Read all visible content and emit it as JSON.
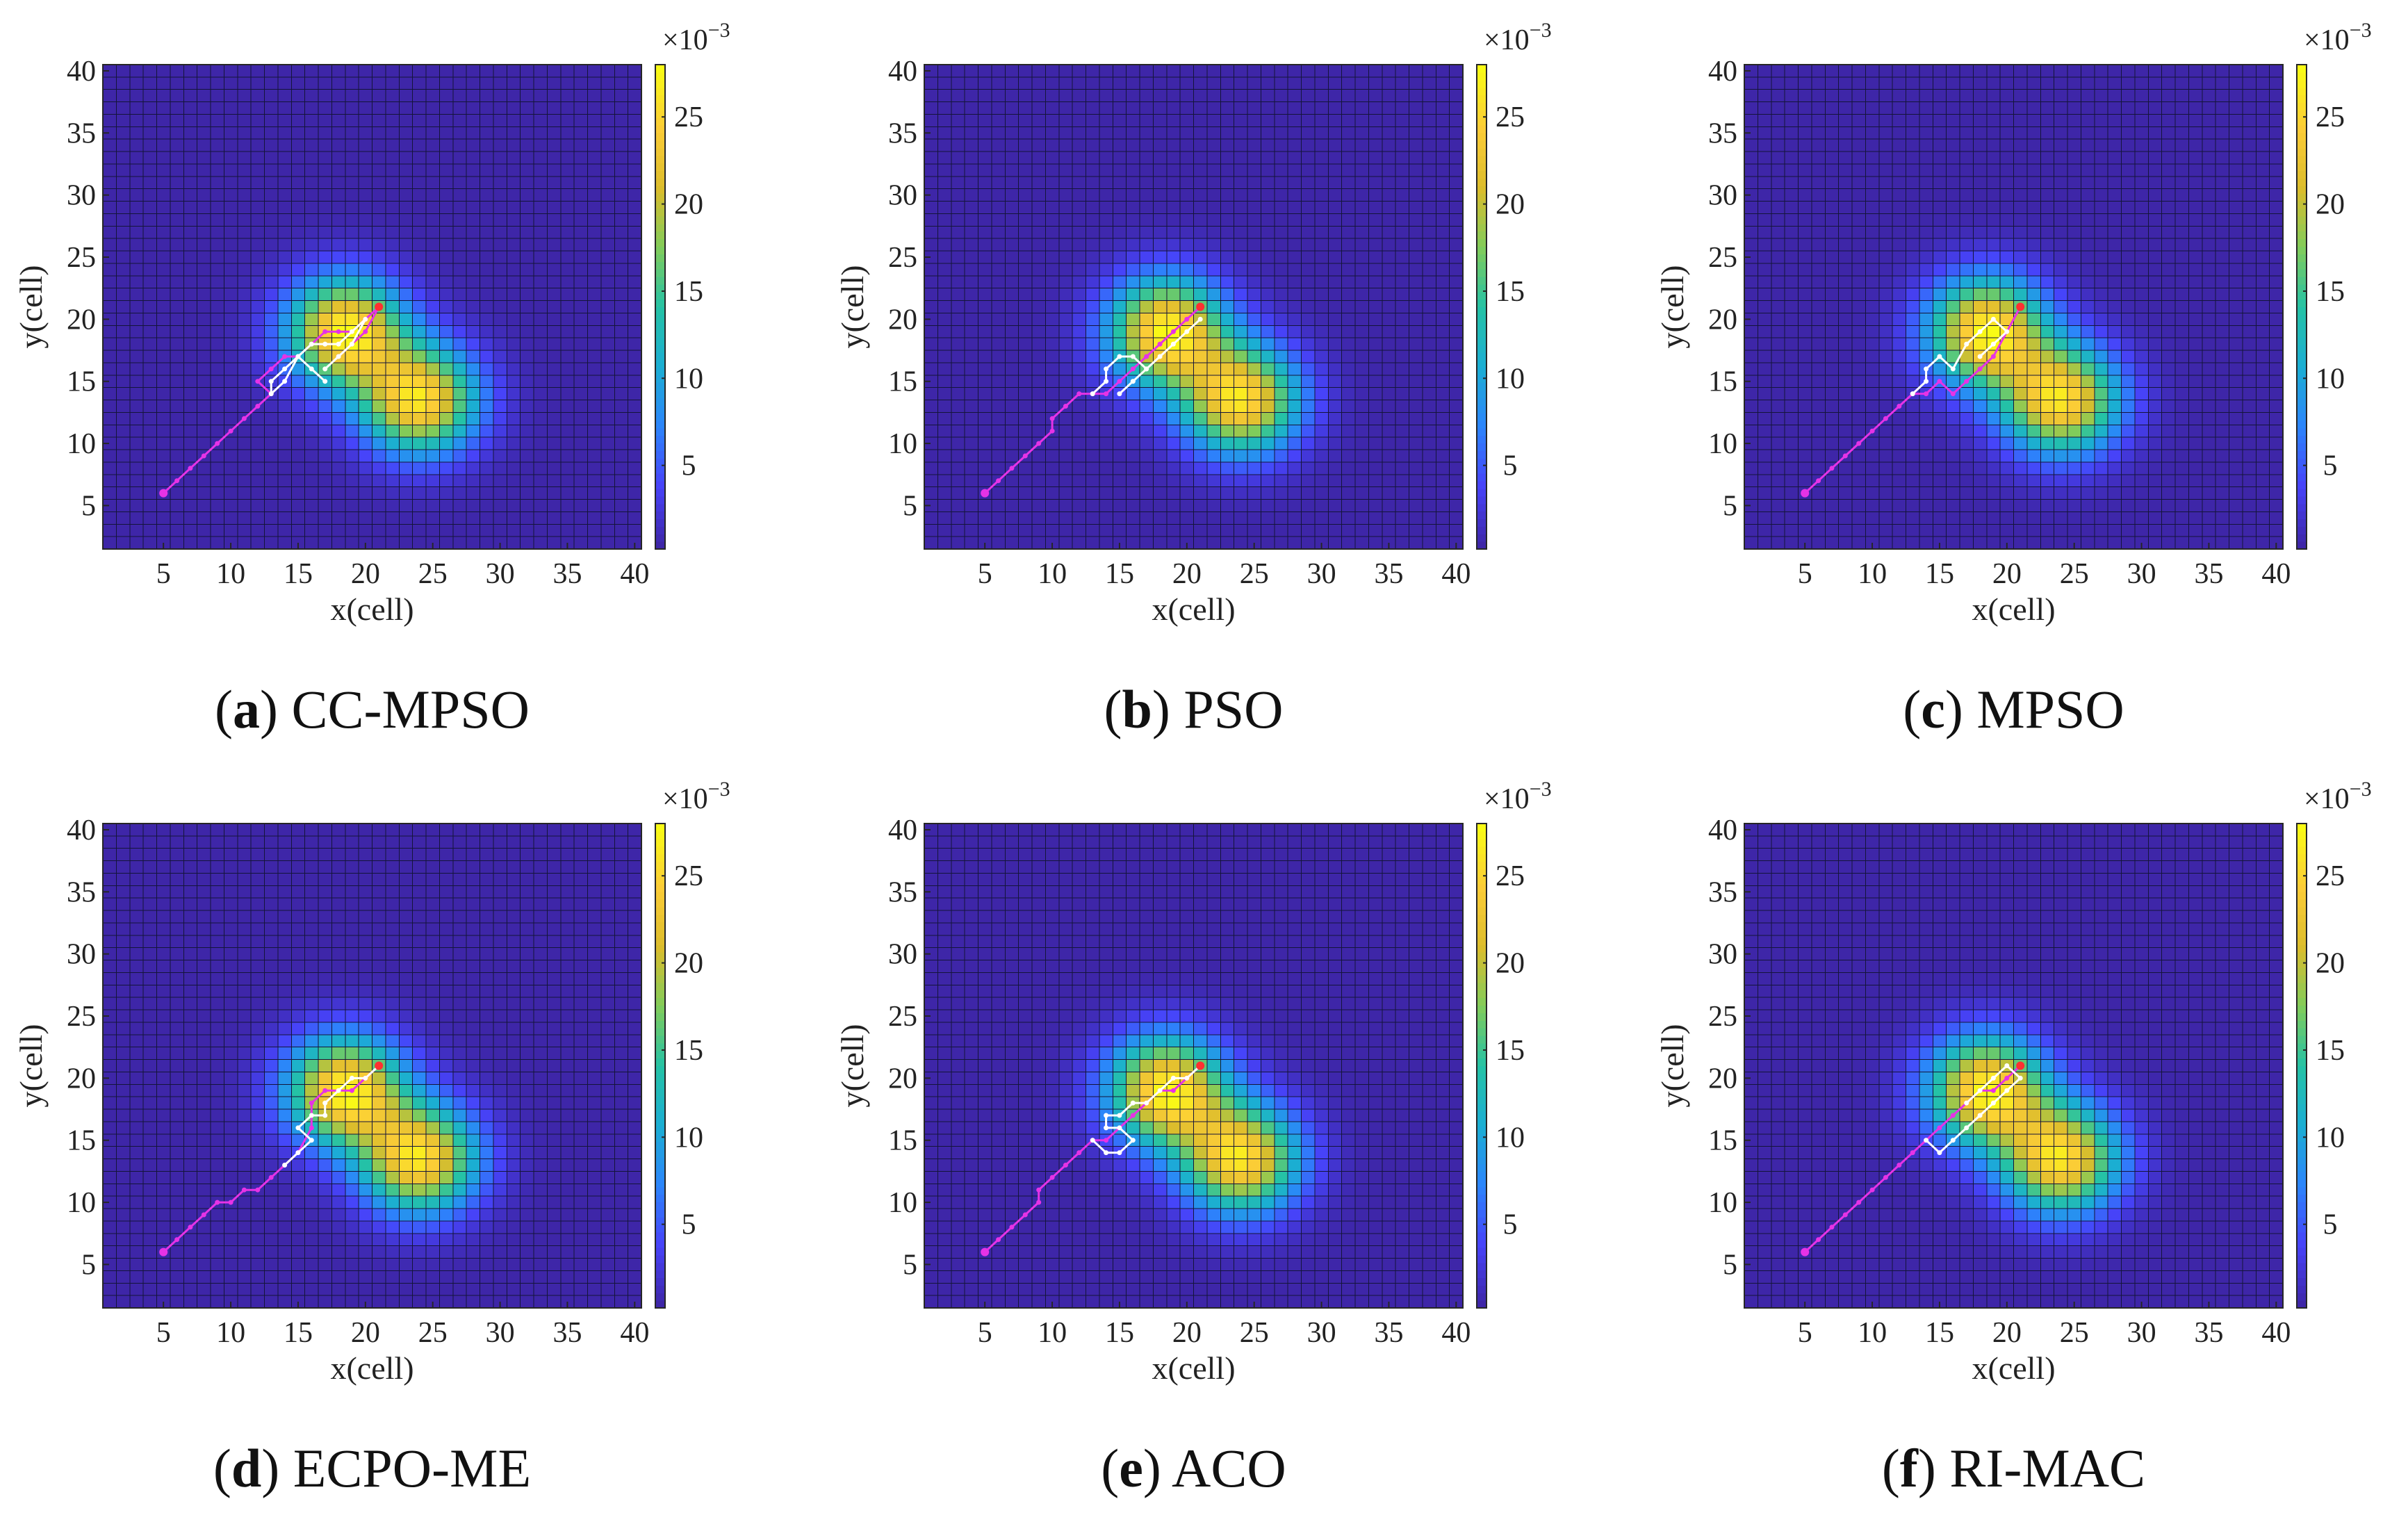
{
  "colors": {
    "background": "#ffffff",
    "grid_line": "#14143a",
    "path_primary": "#ffffff",
    "path_secondary": "#e633e6",
    "start_marker": "#e633e6",
    "end_marker": "#ff3030",
    "axis": "#262626",
    "colormap": [
      "#3e26a8",
      "#4743f9",
      "#2c85fb",
      "#1baed3",
      "#25c2a5",
      "#81cc5a",
      "#dcbd2c",
      "#fbcc37",
      "#f9fb15"
    ]
  },
  "colorbar": {
    "multiplier": "×10",
    "exponent": "−3",
    "ticks": [
      5,
      10,
      15,
      20,
      25
    ],
    "tick_labels": [
      "5",
      "10",
      "15",
      "20",
      "25"
    ],
    "range": [
      0.2,
      28
    ]
  },
  "chart_data": [
    {
      "type": "heatmap",
      "caption_letter": "a",
      "caption_name": "CC-MPSO",
      "xlabel": "x(cell)",
      "ylabel": "y(cell)",
      "xlim": [
        0.5,
        40.5
      ],
      "ylim": [
        1.5,
        40.5
      ],
      "x_ticks": [
        "5",
        "10",
        "15",
        "20",
        "25",
        "30",
        "35",
        "40"
      ],
      "y_ticks": [
        "5",
        "10",
        "15",
        "20",
        "25",
        "30",
        "35",
        "40"
      ],
      "grid": true,
      "peaks": [
        {
          "x": 18.5,
          "y": 19,
          "value": 27.5,
          "sigma": 3.0
        },
        {
          "x": 24,
          "y": 13.5,
          "value": 26.0,
          "sigma": 3.0
        }
      ],
      "path_primary": [
        [
          17,
          15
        ],
        [
          16,
          16
        ],
        [
          15,
          17
        ],
        [
          14,
          15
        ],
        [
          13,
          14
        ],
        [
          13,
          15
        ],
        [
          14,
          16
        ],
        [
          15,
          17
        ],
        [
          16,
          18
        ],
        [
          17,
          18
        ],
        [
          18,
          18
        ],
        [
          19,
          19
        ],
        [
          20,
          20
        ],
        [
          19,
          18
        ],
        [
          18,
          17
        ],
        [
          17,
          16
        ]
      ],
      "path_secondary": [
        [
          5,
          6
        ],
        [
          6,
          7
        ],
        [
          7,
          8
        ],
        [
          8,
          9
        ],
        [
          9,
          10
        ],
        [
          10,
          11
        ],
        [
          11,
          12
        ],
        [
          12,
          13
        ],
        [
          13,
          14
        ],
        [
          12,
          15
        ],
        [
          13,
          16
        ],
        [
          14,
          17
        ],
        [
          15,
          17
        ],
        [
          16,
          18
        ],
        [
          17,
          19
        ],
        [
          18,
          19
        ],
        [
          19,
          19
        ],
        [
          20,
          20
        ],
        [
          21,
          21
        ],
        [
          20,
          19
        ],
        [
          19,
          18
        ],
        [
          18,
          17
        ]
      ],
      "start": [
        5,
        6
      ],
      "end": [
        21,
        21
      ]
    },
    {
      "type": "heatmap",
      "caption_letter": "b",
      "caption_name": "PSO",
      "xlabel": "x(cell)",
      "ylabel": "y(cell)",
      "xlim": [
        0.5,
        40.5
      ],
      "ylim": [
        1.5,
        40.5
      ],
      "x_ticks": [
        "5",
        "10",
        "15",
        "20",
        "25",
        "30",
        "35",
        "40"
      ],
      "y_ticks": [
        "5",
        "10",
        "15",
        "20",
        "25",
        "30",
        "35",
        "40"
      ],
      "grid": true,
      "peaks": [
        {
          "x": 18.5,
          "y": 19,
          "value": 27.5,
          "sigma": 3.0
        },
        {
          "x": 24,
          "y": 13.5,
          "value": 26.0,
          "sigma": 3.0
        }
      ],
      "path_primary": [
        [
          13,
          14
        ],
        [
          14,
          15
        ],
        [
          14,
          16
        ],
        [
          15,
          17
        ],
        [
          16,
          17
        ],
        [
          17,
          16
        ],
        [
          16,
          15
        ],
        [
          15,
          14
        ],
        [
          16,
          15
        ],
        [
          17,
          16
        ],
        [
          18,
          17
        ],
        [
          19,
          18
        ],
        [
          20,
          19
        ],
        [
          21,
          20
        ]
      ],
      "path_secondary": [
        [
          5,
          6
        ],
        [
          6,
          7
        ],
        [
          7,
          8
        ],
        [
          8,
          9
        ],
        [
          9,
          10
        ],
        [
          10,
          11
        ],
        [
          10,
          12
        ],
        [
          11,
          13
        ],
        [
          12,
          14
        ],
        [
          13,
          14
        ],
        [
          14,
          14
        ],
        [
          15,
          15
        ],
        [
          16,
          16
        ],
        [
          17,
          17
        ],
        [
          18,
          18
        ],
        [
          19,
          19
        ],
        [
          20,
          20
        ],
        [
          21,
          21
        ]
      ],
      "start": [
        5,
        6
      ],
      "end": [
        21,
        21
      ]
    },
    {
      "type": "heatmap",
      "caption_letter": "c",
      "caption_name": "MPSO",
      "xlabel": "x(cell)",
      "ylabel": "y(cell)",
      "xlim": [
        0.5,
        40.5
      ],
      "ylim": [
        1.5,
        40.5
      ],
      "x_ticks": [
        "5",
        "10",
        "15",
        "20",
        "25",
        "30",
        "35",
        "40"
      ],
      "y_ticks": [
        "5",
        "10",
        "15",
        "20",
        "25",
        "30",
        "35",
        "40"
      ],
      "grid": true,
      "peaks": [
        {
          "x": 18.5,
          "y": 19,
          "value": 27.5,
          "sigma": 3.0
        },
        {
          "x": 24,
          "y": 13.5,
          "value": 26.0,
          "sigma": 3.0
        }
      ],
      "path_primary": [
        [
          13,
          14
        ],
        [
          14,
          15
        ],
        [
          14,
          16
        ],
        [
          15,
          17
        ],
        [
          16,
          16
        ],
        [
          17,
          18
        ],
        [
          18,
          19
        ],
        [
          19,
          20
        ],
        [
          20,
          19
        ],
        [
          19,
          18
        ],
        [
          18,
          17
        ]
      ],
      "path_secondary": [
        [
          5,
          6
        ],
        [
          6,
          7
        ],
        [
          7,
          8
        ],
        [
          8,
          9
        ],
        [
          9,
          10
        ],
        [
          10,
          11
        ],
        [
          11,
          12
        ],
        [
          12,
          13
        ],
        [
          13,
          14
        ],
        [
          14,
          14
        ],
        [
          15,
          15
        ],
        [
          16,
          14
        ],
        [
          17,
          15
        ],
        [
          18,
          16
        ],
        [
          19,
          17
        ],
        [
          20,
          19
        ],
        [
          21,
          21
        ]
      ],
      "start": [
        5,
        6
      ],
      "end": [
        21,
        21
      ]
    },
    {
      "type": "heatmap",
      "caption_letter": "d",
      "caption_name": "ECPO-ME",
      "xlabel": "x(cell)",
      "ylabel": "y(cell)",
      "xlim": [
        0.5,
        40.5
      ],
      "ylim": [
        1.5,
        40.5
      ],
      "x_ticks": [
        "5",
        "10",
        "15",
        "20",
        "25",
        "30",
        "35",
        "40"
      ],
      "y_ticks": [
        "5",
        "10",
        "15",
        "20",
        "25",
        "30",
        "35",
        "40"
      ],
      "grid": true,
      "peaks": [
        {
          "x": 18.5,
          "y": 19,
          "value": 27.5,
          "sigma": 3.0
        },
        {
          "x": 24,
          "y": 13.5,
          "value": 26.0,
          "sigma": 3.0
        }
      ],
      "path_primary": [
        [
          14,
          13
        ],
        [
          15,
          14
        ],
        [
          16,
          15
        ],
        [
          15,
          16
        ],
        [
          16,
          17
        ],
        [
          17,
          17
        ],
        [
          17,
          18
        ],
        [
          18,
          19
        ],
        [
          19,
          20
        ],
        [
          20,
          20
        ],
        [
          21,
          21
        ]
      ],
      "path_secondary": [
        [
          5,
          6
        ],
        [
          6,
          7
        ],
        [
          7,
          8
        ],
        [
          8,
          9
        ],
        [
          9,
          10
        ],
        [
          10,
          10
        ],
        [
          11,
          11
        ],
        [
          12,
          11
        ],
        [
          13,
          12
        ],
        [
          14,
          13
        ],
        [
          15,
          14
        ],
        [
          16,
          16
        ],
        [
          16,
          18
        ],
        [
          17,
          19
        ],
        [
          18,
          19
        ],
        [
          19,
          19
        ],
        [
          20,
          20
        ],
        [
          21,
          21
        ]
      ],
      "start": [
        5,
        6
      ],
      "end": [
        21,
        21
      ]
    },
    {
      "type": "heatmap",
      "caption_letter": "e",
      "caption_name": "ACO",
      "xlabel": "x(cell)",
      "ylabel": "y(cell)",
      "xlim": [
        0.5,
        40.5
      ],
      "ylim": [
        1.5,
        40.5
      ],
      "x_ticks": [
        "5",
        "10",
        "15",
        "20",
        "25",
        "30",
        "35",
        "40"
      ],
      "y_ticks": [
        "5",
        "10",
        "15",
        "20",
        "25",
        "30",
        "35",
        "40"
      ],
      "grid": true,
      "peaks": [
        {
          "x": 18.5,
          "y": 19,
          "value": 27.5,
          "sigma": 3.0
        },
        {
          "x": 24,
          "y": 13.5,
          "value": 26.0,
          "sigma": 3.0
        }
      ],
      "path_primary": [
        [
          13,
          15
        ],
        [
          14,
          14
        ],
        [
          15,
          14
        ],
        [
          16,
          15
        ],
        [
          15,
          16
        ],
        [
          14,
          16
        ],
        [
          14,
          17
        ],
        [
          15,
          17
        ],
        [
          16,
          18
        ],
        [
          17,
          18
        ],
        [
          18,
          19
        ],
        [
          19,
          20
        ],
        [
          20,
          20
        ],
        [
          21,
          21
        ]
      ],
      "path_secondary": [
        [
          5,
          6
        ],
        [
          6,
          7
        ],
        [
          7,
          8
        ],
        [
          8,
          9
        ],
        [
          9,
          10
        ],
        [
          9,
          11
        ],
        [
          10,
          12
        ],
        [
          11,
          13
        ],
        [
          12,
          14
        ],
        [
          13,
          15
        ],
        [
          14,
          15
        ],
        [
          15,
          16
        ],
        [
          16,
          17
        ],
        [
          17,
          18
        ],
        [
          18,
          19
        ],
        [
          19,
          19
        ],
        [
          20,
          20
        ],
        [
          21,
          21
        ]
      ],
      "start": [
        5,
        6
      ],
      "end": [
        21,
        21
      ]
    },
    {
      "type": "heatmap",
      "caption_letter": "f",
      "caption_name": "RI-MAC",
      "xlabel": "x(cell)",
      "ylabel": "y(cell)",
      "xlim": [
        0.5,
        40.5
      ],
      "ylim": [
        1.5,
        40.5
      ],
      "x_ticks": [
        "5",
        "10",
        "15",
        "20",
        "25",
        "30",
        "35",
        "40"
      ],
      "y_ticks": [
        "5",
        "10",
        "15",
        "20",
        "25",
        "30",
        "35",
        "40"
      ],
      "grid": true,
      "peaks": [
        {
          "x": 18.5,
          "y": 19,
          "value": 27.5,
          "sigma": 3.0
        },
        {
          "x": 24,
          "y": 13.5,
          "value": 26.0,
          "sigma": 3.0
        }
      ],
      "path_primary": [
        [
          14,
          15
        ],
        [
          15,
          14
        ],
        [
          16,
          15
        ],
        [
          17,
          16
        ],
        [
          18,
          17
        ],
        [
          19,
          18
        ],
        [
          20,
          19
        ],
        [
          21,
          20
        ],
        [
          20,
          21
        ],
        [
          19,
          20
        ],
        [
          18,
          19
        ],
        [
          17,
          18
        ]
      ],
      "path_secondary": [
        [
          5,
          6
        ],
        [
          6,
          7
        ],
        [
          7,
          8
        ],
        [
          8,
          9
        ],
        [
          9,
          10
        ],
        [
          10,
          11
        ],
        [
          11,
          12
        ],
        [
          12,
          13
        ],
        [
          13,
          14
        ],
        [
          14,
          15
        ],
        [
          15,
          16
        ],
        [
          16,
          17
        ],
        [
          17,
          18
        ],
        [
          18,
          19
        ],
        [
          19,
          19
        ],
        [
          20,
          20
        ],
        [
          21,
          21
        ]
      ],
      "start": [
        5,
        6
      ],
      "end": [
        21,
        21
      ]
    }
  ]
}
